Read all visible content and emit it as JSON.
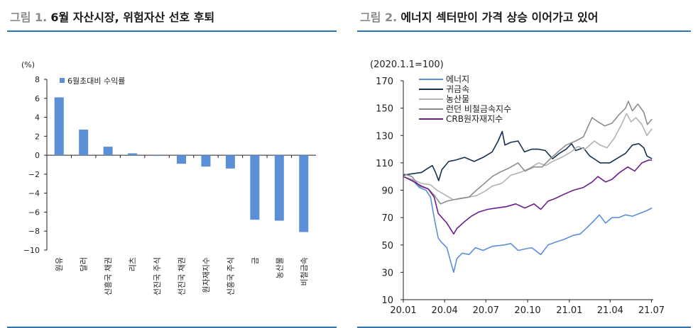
{
  "figure1": {
    "number": "그림 1.",
    "title": "6월 자산시장, 위험자산 선호 후퇴"
  },
  "figure2": {
    "number": "그림 2.",
    "title": "에너지 섹터만이 가격 상승 이어가고 있어"
  },
  "colors": {
    "title_rule": "#2e75b6",
    "bar": "#5b8fd6",
    "energy": "#5b8fd6",
    "precious": "#16304f",
    "agri": "#b3b3b3",
    "lme": "#8c8c8c",
    "crb": "#6b1d8c"
  },
  "chart_data": [
    {
      "type": "bar",
      "unit_label": "(%)",
      "categories": [
        "원유",
        "달러",
        "신흥국 채권",
        "리츠",
        "선진국 주식",
        "선진국 채권",
        "원자재지수",
        "신흥국 주식",
        "금",
        "농산물",
        "비철금속"
      ],
      "series": [
        {
          "name": "6월초대비 수익률",
          "values": [
            6.1,
            2.7,
            0.9,
            0.2,
            -0.05,
            -0.9,
            -1.2,
            -1.4,
            -6.8,
            -6.9,
            -8.1
          ]
        }
      ],
      "ylim": [
        -10,
        8
      ],
      "yticks": [
        "8",
        "6",
        "4",
        "2",
        "0",
        "−2",
        "−4",
        "−6",
        "−8",
        "−10"
      ],
      "legend_position": "top-left",
      "grid": false
    },
    {
      "type": "line",
      "unit_label": "(2020.1.1=100)",
      "x_ticks": [
        "20.01",
        "20.04",
        "20.07",
        "20.10",
        "21.01",
        "21.04",
        "21.07"
      ],
      "x_range": [
        "2020-01-01",
        "2021-07-05"
      ],
      "ylim": [
        10,
        170
      ],
      "yticks": [
        "170",
        "150",
        "130",
        "110",
        "90",
        "70",
        "50",
        "30",
        "10"
      ],
      "legend_position": "top-left",
      "grid": false,
      "series": [
        {
          "name": "에너지",
          "points": [
            [
              "2020-01-01",
              100
            ],
            [
              "2020-01-20",
              98
            ],
            [
              "2020-02-05",
              92
            ],
            [
              "2020-02-20",
              90
            ],
            [
              "2020-03-01",
              85
            ],
            [
              "2020-03-09",
              70
            ],
            [
              "2020-03-18",
              55
            ],
            [
              "2020-03-25",
              52
            ],
            [
              "2020-04-06",
              48
            ],
            [
              "2020-04-15",
              37
            ],
            [
              "2020-04-21",
              30
            ],
            [
              "2020-04-28",
              40
            ],
            [
              "2020-05-10",
              44
            ],
            [
              "2020-05-25",
              43
            ],
            [
              "2020-06-08",
              48
            ],
            [
              "2020-06-25",
              46
            ],
            [
              "2020-07-15",
              49
            ],
            [
              "2020-08-10",
              50
            ],
            [
              "2020-08-25",
              51
            ],
            [
              "2020-09-10",
              46
            ],
            [
              "2020-09-25",
              47
            ],
            [
              "2020-10-10",
              48
            ],
            [
              "2020-10-30",
              43
            ],
            [
              "2020-11-15",
              50
            ],
            [
              "2020-12-01",
              52
            ],
            [
              "2020-12-20",
              54
            ],
            [
              "2021-01-10",
              57
            ],
            [
              "2021-01-25",
              58
            ],
            [
              "2021-02-10",
              63
            ],
            [
              "2021-02-25",
              68
            ],
            [
              "2021-03-08",
              72
            ],
            [
              "2021-03-22",
              66
            ],
            [
              "2021-04-05",
              70
            ],
            [
              "2021-04-20",
              70
            ],
            [
              "2021-05-05",
              72
            ],
            [
              "2021-05-20",
              71
            ],
            [
              "2021-06-05",
              73
            ],
            [
              "2021-06-20",
              75
            ],
            [
              "2021-07-02",
              77
            ]
          ]
        },
        {
          "name": "귀금속",
          "points": [
            [
              "2020-01-01",
              101
            ],
            [
              "2020-01-20",
              102
            ],
            [
              "2020-02-10",
              103
            ],
            [
              "2020-02-24",
              106
            ],
            [
              "2020-03-05",
              108
            ],
            [
              "2020-03-12",
              103
            ],
            [
              "2020-03-19",
              97
            ],
            [
              "2020-03-26",
              105
            ],
            [
              "2020-04-10",
              111
            ],
            [
              "2020-04-25",
              112
            ],
            [
              "2020-05-15",
              114
            ],
            [
              "2020-06-05",
              111
            ],
            [
              "2020-06-25",
              114
            ],
            [
              "2020-07-15",
              118
            ],
            [
              "2020-07-28",
              126
            ],
            [
              "2020-08-06",
              133
            ],
            [
              "2020-08-12",
              123
            ],
            [
              "2020-08-25",
              125
            ],
            [
              "2020-09-10",
              126
            ],
            [
              "2020-09-24",
              118
            ],
            [
              "2020-10-10",
              120
            ],
            [
              "2020-10-25",
              120
            ],
            [
              "2020-11-09",
              119
            ],
            [
              "2020-11-25",
              113
            ],
            [
              "2020-12-10",
              117
            ],
            [
              "2020-12-25",
              120
            ],
            [
              "2021-01-06",
              124
            ],
            [
              "2021-01-15",
              119
            ],
            [
              "2021-02-01",
              121
            ],
            [
              "2021-02-15",
              115
            ],
            [
              "2021-03-01",
              112
            ],
            [
              "2021-03-10",
              110
            ],
            [
              "2021-03-31",
              110
            ],
            [
              "2021-04-15",
              113
            ],
            [
              "2021-05-05",
              117
            ],
            [
              "2021-05-20",
              123
            ],
            [
              "2021-06-03",
              124
            ],
            [
              "2021-06-14",
              121
            ],
            [
              "2021-06-21",
              115
            ],
            [
              "2021-07-02",
              113
            ]
          ]
        },
        {
          "name": "농산물",
          "points": [
            [
              "2020-01-01",
              100
            ],
            [
              "2020-01-20",
              98
            ],
            [
              "2020-02-10",
              95
            ],
            [
              "2020-03-01",
              94
            ],
            [
              "2020-03-15",
              90
            ],
            [
              "2020-03-31",
              87
            ],
            [
              "2020-04-20",
              83
            ],
            [
              "2020-05-10",
              84
            ],
            [
              "2020-05-25",
              85
            ],
            [
              "2020-06-10",
              86
            ],
            [
              "2020-06-28",
              89
            ],
            [
              "2020-07-15",
              93
            ],
            [
              "2020-08-05",
              95
            ],
            [
              "2020-08-25",
              101
            ],
            [
              "2020-09-15",
              103
            ],
            [
              "2020-10-05",
              106
            ],
            [
              "2020-10-25",
              110
            ],
            [
              "2020-11-10",
              108
            ],
            [
              "2020-11-25",
              111
            ],
            [
              "2020-12-15",
              114
            ],
            [
              "2021-01-05",
              118
            ],
            [
              "2021-01-20",
              122
            ],
            [
              "2021-02-05",
              120
            ],
            [
              "2021-02-25",
              126
            ],
            [
              "2021-03-10",
              123
            ],
            [
              "2021-03-25",
              121
            ],
            [
              "2021-04-10",
              128
            ],
            [
              "2021-04-26",
              138
            ],
            [
              "2021-05-07",
              146
            ],
            [
              "2021-05-17",
              140
            ],
            [
              "2021-05-28",
              143
            ],
            [
              "2021-06-10",
              138
            ],
            [
              "2021-06-21",
              130
            ],
            [
              "2021-07-02",
              135
            ]
          ]
        },
        {
          "name": "런던 비철금속지수",
          "points": [
            [
              "2020-01-01",
              102
            ],
            [
              "2020-01-20",
              100
            ],
            [
              "2020-02-05",
              93
            ],
            [
              "2020-02-25",
              91
            ],
            [
              "2020-03-10",
              86
            ],
            [
              "2020-03-23",
              80
            ],
            [
              "2020-04-06",
              82
            ],
            [
              "2020-04-20",
              83
            ],
            [
              "2020-05-05",
              84
            ],
            [
              "2020-05-25",
              85
            ],
            [
              "2020-06-10",
              90
            ],
            [
              "2020-06-28",
              95
            ],
            [
              "2020-07-15",
              100
            ],
            [
              "2020-07-31",
              103
            ],
            [
              "2020-08-20",
              106
            ],
            [
              "2020-09-10",
              110
            ],
            [
              "2020-09-25",
              104
            ],
            [
              "2020-10-15",
              107
            ],
            [
              "2020-11-02",
              107
            ],
            [
              "2020-11-20",
              113
            ],
            [
              "2020-12-07",
              118
            ],
            [
              "2020-12-25",
              123
            ],
            [
              "2021-01-15",
              126
            ],
            [
              "2021-02-01",
              129
            ],
            [
              "2021-02-20",
              143
            ],
            [
              "2021-03-05",
              140
            ],
            [
              "2021-03-20",
              137
            ],
            [
              "2021-04-05",
              139
            ],
            [
              "2021-04-20",
              145
            ],
            [
              "2021-05-05",
              150
            ],
            [
              "2021-05-11",
              155
            ],
            [
              "2021-05-20",
              148
            ],
            [
              "2021-06-01",
              153
            ],
            [
              "2021-06-14",
              147
            ],
            [
              "2021-06-22",
              138
            ],
            [
              "2021-07-02",
              142
            ]
          ]
        },
        {
          "name": "CRB원자재지수",
          "points": [
            [
              "2020-01-01",
              100
            ],
            [
              "2020-01-20",
              97
            ],
            [
              "2020-02-10",
              93
            ],
            [
              "2020-02-25",
              91
            ],
            [
              "2020-03-09",
              85
            ],
            [
              "2020-03-18",
              73
            ],
            [
              "2020-04-06",
              66
            ],
            [
              "2020-04-21",
              58
            ],
            [
              "2020-04-28",
              62
            ],
            [
              "2020-05-15",
              67
            ],
            [
              "2020-05-30",
              71
            ],
            [
              "2020-06-15",
              74
            ],
            [
              "2020-07-05",
              76
            ],
            [
              "2020-07-25",
              77
            ],
            [
              "2020-08-15",
              78
            ],
            [
              "2020-09-05",
              80
            ],
            [
              "2020-09-25",
              77
            ],
            [
              "2020-10-15",
              80
            ],
            [
              "2020-10-30",
              76
            ],
            [
              "2020-11-15",
              82
            ],
            [
              "2020-12-01",
              84
            ],
            [
              "2020-12-20",
              87
            ],
            [
              "2021-01-10",
              90
            ],
            [
              "2021-02-01",
              92
            ],
            [
              "2021-02-20",
              96
            ],
            [
              "2021-03-05",
              100
            ],
            [
              "2021-03-22",
              96
            ],
            [
              "2021-04-05",
              98
            ],
            [
              "2021-04-22",
              103
            ],
            [
              "2021-05-10",
              107
            ],
            [
              "2021-05-25",
              104
            ],
            [
              "2021-06-10",
              110
            ],
            [
              "2021-06-25",
              112
            ],
            [
              "2021-07-02",
              112
            ]
          ]
        }
      ]
    }
  ]
}
